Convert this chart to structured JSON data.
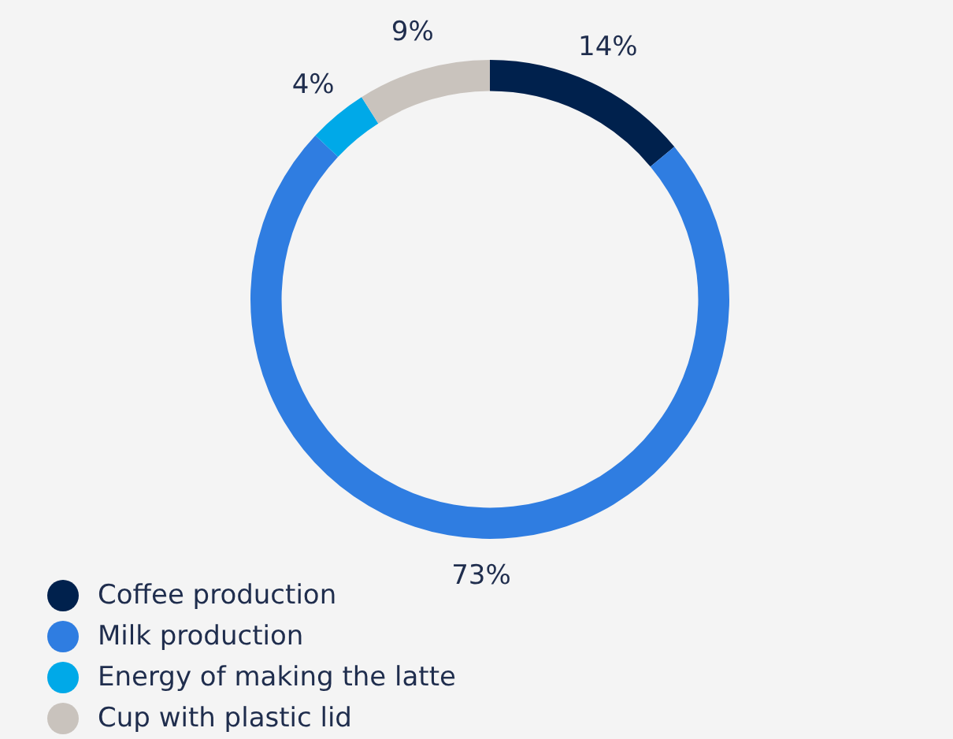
{
  "chart_data": {
    "type": "donut",
    "categories": [
      "Coffee production",
      "Milk production",
      "Energy of making the latte",
      "Cup with plastic lid"
    ],
    "values": [
      14,
      73,
      4,
      9
    ],
    "colors": [
      "#00214d",
      "#2f7de1",
      "#00a9e8",
      "#c9c3bd"
    ],
    "value_labels": [
      "14%",
      "73%",
      "4%",
      "9%"
    ],
    "legend": "bottom left"
  }
}
